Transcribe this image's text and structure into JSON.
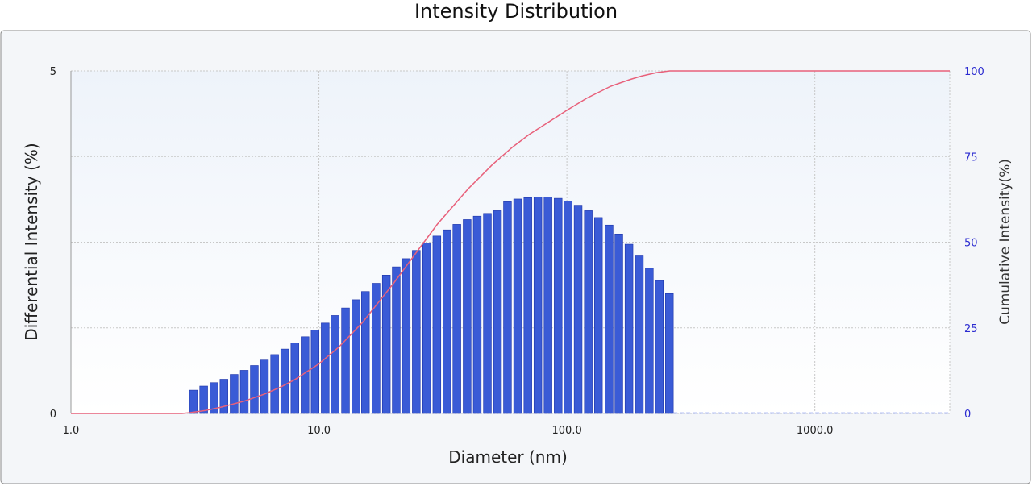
{
  "chart_data": {
    "type": "bar",
    "title": "Intensity Distribution",
    "xlabel": "Diameter (nm)",
    "ylabel": "Differential Intensity (%)",
    "y2label": "Cumulative Intensity(%)",
    "xscale": "log",
    "xlim": [
      1.0,
      3500.0
    ],
    "ylim": [
      0,
      5
    ],
    "y2lim": [
      0,
      100
    ],
    "xticks": [
      1.0,
      10.0,
      100.0,
      1000.0
    ],
    "xtick_labels": [
      "1.0",
      "10.0",
      "100.0",
      "1000.0"
    ],
    "yticks": [
      0,
      5
    ],
    "yticks_minor": [
      1.25,
      2.5,
      3.75
    ],
    "y2ticks": [
      0,
      25,
      50,
      75,
      100
    ],
    "grid": true,
    "colors": {
      "bars": "#3a5bd6",
      "bar_edge": "#1d34a8",
      "cumulative_line": "#e8607a",
      "baseline": "#6f86ea",
      "grid": "#c8c8c8",
      "plot_background_top": "#eef3fa",
      "plot_background_bottom": "#ffffff",
      "right_axis_text": "#2a2ad0"
    },
    "series": [
      {
        "kind": "bar",
        "axis": "left",
        "x": [
          3.12,
          3.43,
          3.77,
          4.14,
          4.55,
          5.0,
          5.49,
          6.03,
          6.63,
          7.28,
          8.0,
          8.79,
          9.65,
          10.6,
          11.6,
          12.8,
          14.1,
          15.4,
          17.0,
          18.7,
          20.5,
          22.5,
          24.7,
          27.2,
          29.9,
          32.8,
          36.0,
          39.6,
          43.5,
          47.8,
          52.5,
          57.6,
          63.3,
          69.6,
          76.4,
          83.9,
          92.2,
          101,
          111,
          122,
          134,
          148,
          162,
          178,
          196,
          215,
          236,
          259
        ],
        "values": [
          0.34,
          0.4,
          0.45,
          0.5,
          0.57,
          0.63,
          0.7,
          0.78,
          0.86,
          0.94,
          1.03,
          1.12,
          1.22,
          1.32,
          1.43,
          1.54,
          1.66,
          1.78,
          1.9,
          2.02,
          2.14,
          2.26,
          2.38,
          2.49,
          2.59,
          2.68,
          2.76,
          2.83,
          2.88,
          2.92,
          2.96,
          3.09,
          3.13,
          3.15,
          3.16,
          3.16,
          3.14,
          3.1,
          3.04,
          2.96,
          2.86,
          2.75,
          2.62,
          2.47,
          2.3,
          2.12,
          1.94,
          1.75
        ]
      },
      {
        "kind": "line",
        "axis": "right",
        "x": [
          1.0,
          2.8,
          3.0,
          3.5,
          4.0,
          5.0,
          6.0,
          7.0,
          8.0,
          10.0,
          12.0,
          15.0,
          20.0,
          25.0,
          30.0,
          40.0,
          50.0,
          60.0,
          70.0,
          80.0,
          100.0,
          120.0,
          150.0,
          180.0,
          200.0,
          230.0,
          260.0,
          3500.0
        ],
        "values": [
          0,
          0,
          0.2,
          0.9,
          1.8,
          3.6,
          5.6,
          7.7,
          9.9,
          14.5,
          19.3,
          26.6,
          38.0,
          47.5,
          55.2,
          65.6,
          72.6,
          77.6,
          81.3,
          84.0,
          88.5,
          92.0,
          95.5,
          97.5,
          98.5,
          99.5,
          100,
          100
        ]
      }
    ]
  }
}
